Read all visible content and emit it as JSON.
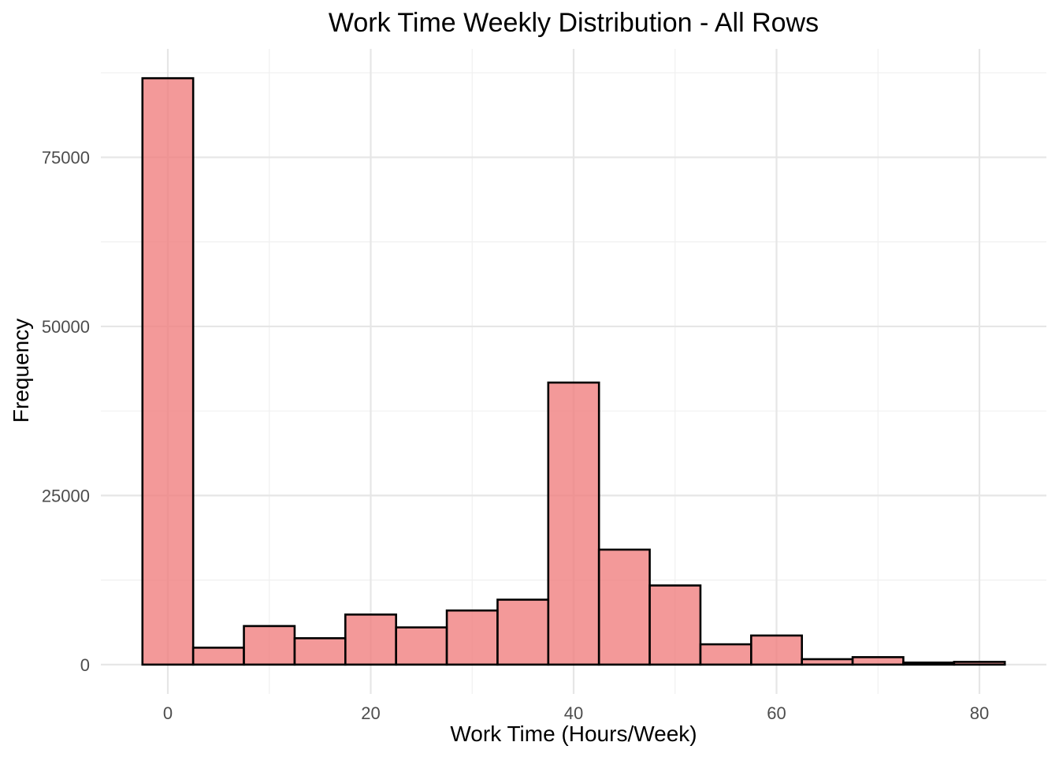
{
  "chart_data": {
    "type": "bar",
    "title": "Work Time Weekly Distribution - All Rows",
    "xlabel": "Work Time (Hours/Week)",
    "ylabel": "Frequency",
    "bin_width": 5,
    "bins": [
      {
        "start": -2.5,
        "end": 2.5,
        "count": 86700
      },
      {
        "start": 2.5,
        "end": 7.5,
        "count": 2500
      },
      {
        "start": 7.5,
        "end": 12.5,
        "count": 5700
      },
      {
        "start": 12.5,
        "end": 17.5,
        "count": 3900
      },
      {
        "start": 17.5,
        "end": 22.5,
        "count": 7400
      },
      {
        "start": 22.5,
        "end": 27.5,
        "count": 5500
      },
      {
        "start": 27.5,
        "end": 32.5,
        "count": 8000
      },
      {
        "start": 32.5,
        "end": 37.5,
        "count": 9600
      },
      {
        "start": 37.5,
        "end": 42.5,
        "count": 41700
      },
      {
        "start": 42.5,
        "end": 47.5,
        "count": 17000
      },
      {
        "start": 47.5,
        "end": 52.5,
        "count": 11700
      },
      {
        "start": 52.5,
        "end": 57.5,
        "count": 3000
      },
      {
        "start": 57.5,
        "end": 62.5,
        "count": 4300
      },
      {
        "start": 62.5,
        "end": 67.5,
        "count": 800
      },
      {
        "start": 67.5,
        "end": 72.5,
        "count": 1100
      },
      {
        "start": 72.5,
        "end": 77.5,
        "count": 300
      },
      {
        "start": 77.5,
        "end": 82.5,
        "count": 400
      }
    ],
    "x_ticks": [
      0,
      20,
      40,
      60,
      80
    ],
    "x_tick_labels": [
      "0",
      "20",
      "40",
      "60",
      "80"
    ],
    "x_minor_ticks": [
      10,
      30,
      50,
      70
    ],
    "y_ticks": [
      0,
      25000,
      50000,
      75000
    ],
    "y_tick_labels": [
      "0",
      "25000",
      "50000",
      "75000"
    ],
    "y_minor_ticks": [
      12500,
      37500,
      62500,
      87500
    ],
    "xlim": [
      -6.6,
      86.6
    ],
    "ylim": [
      -4335,
      91035
    ],
    "grid": true,
    "legend": "none",
    "fill_color": "#F08080",
    "fill_opacity": 0.8,
    "outline_color": "#000000"
  }
}
